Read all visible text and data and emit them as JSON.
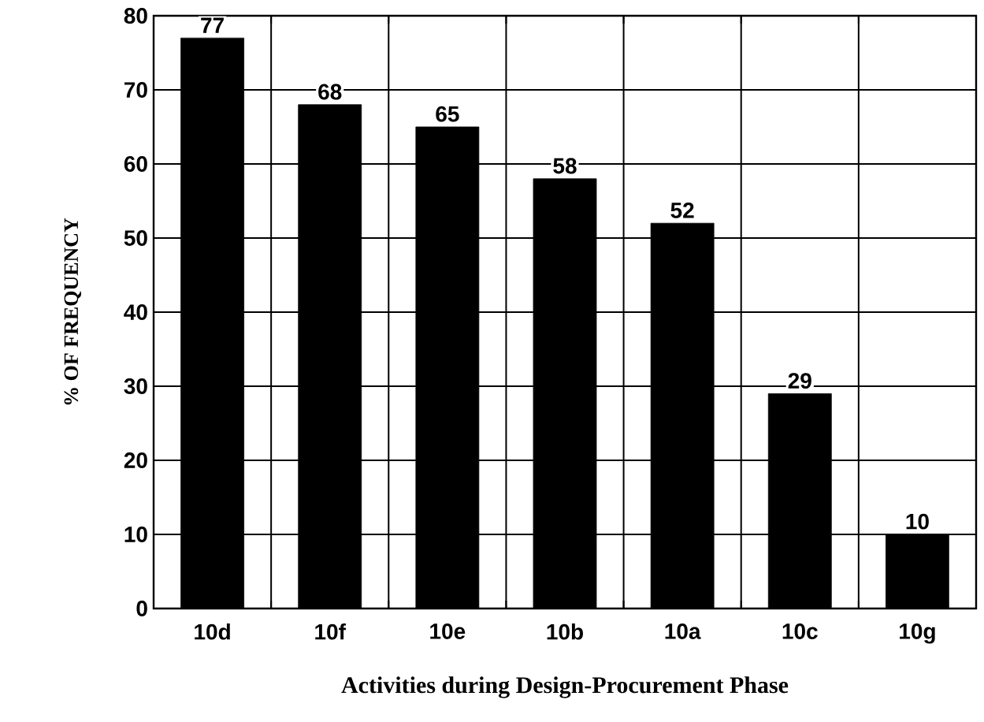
{
  "chart_data": {
    "type": "bar",
    "xlabel": "Activities during Design-Procurement Phase",
    "ylabel": "% OF FREQUENCY",
    "categories": [
      "10d",
      "10f",
      "10e",
      "10b",
      "10a",
      "10c",
      "10g"
    ],
    "values": [
      77,
      68,
      65,
      58,
      52,
      29,
      10
    ],
    "color": "#000000",
    "ylim": [
      0,
      80
    ],
    "yticks": [
      0,
      10,
      20,
      30,
      40,
      50,
      60,
      70,
      80
    ],
    "grid": true,
    "data_labels": true
  }
}
